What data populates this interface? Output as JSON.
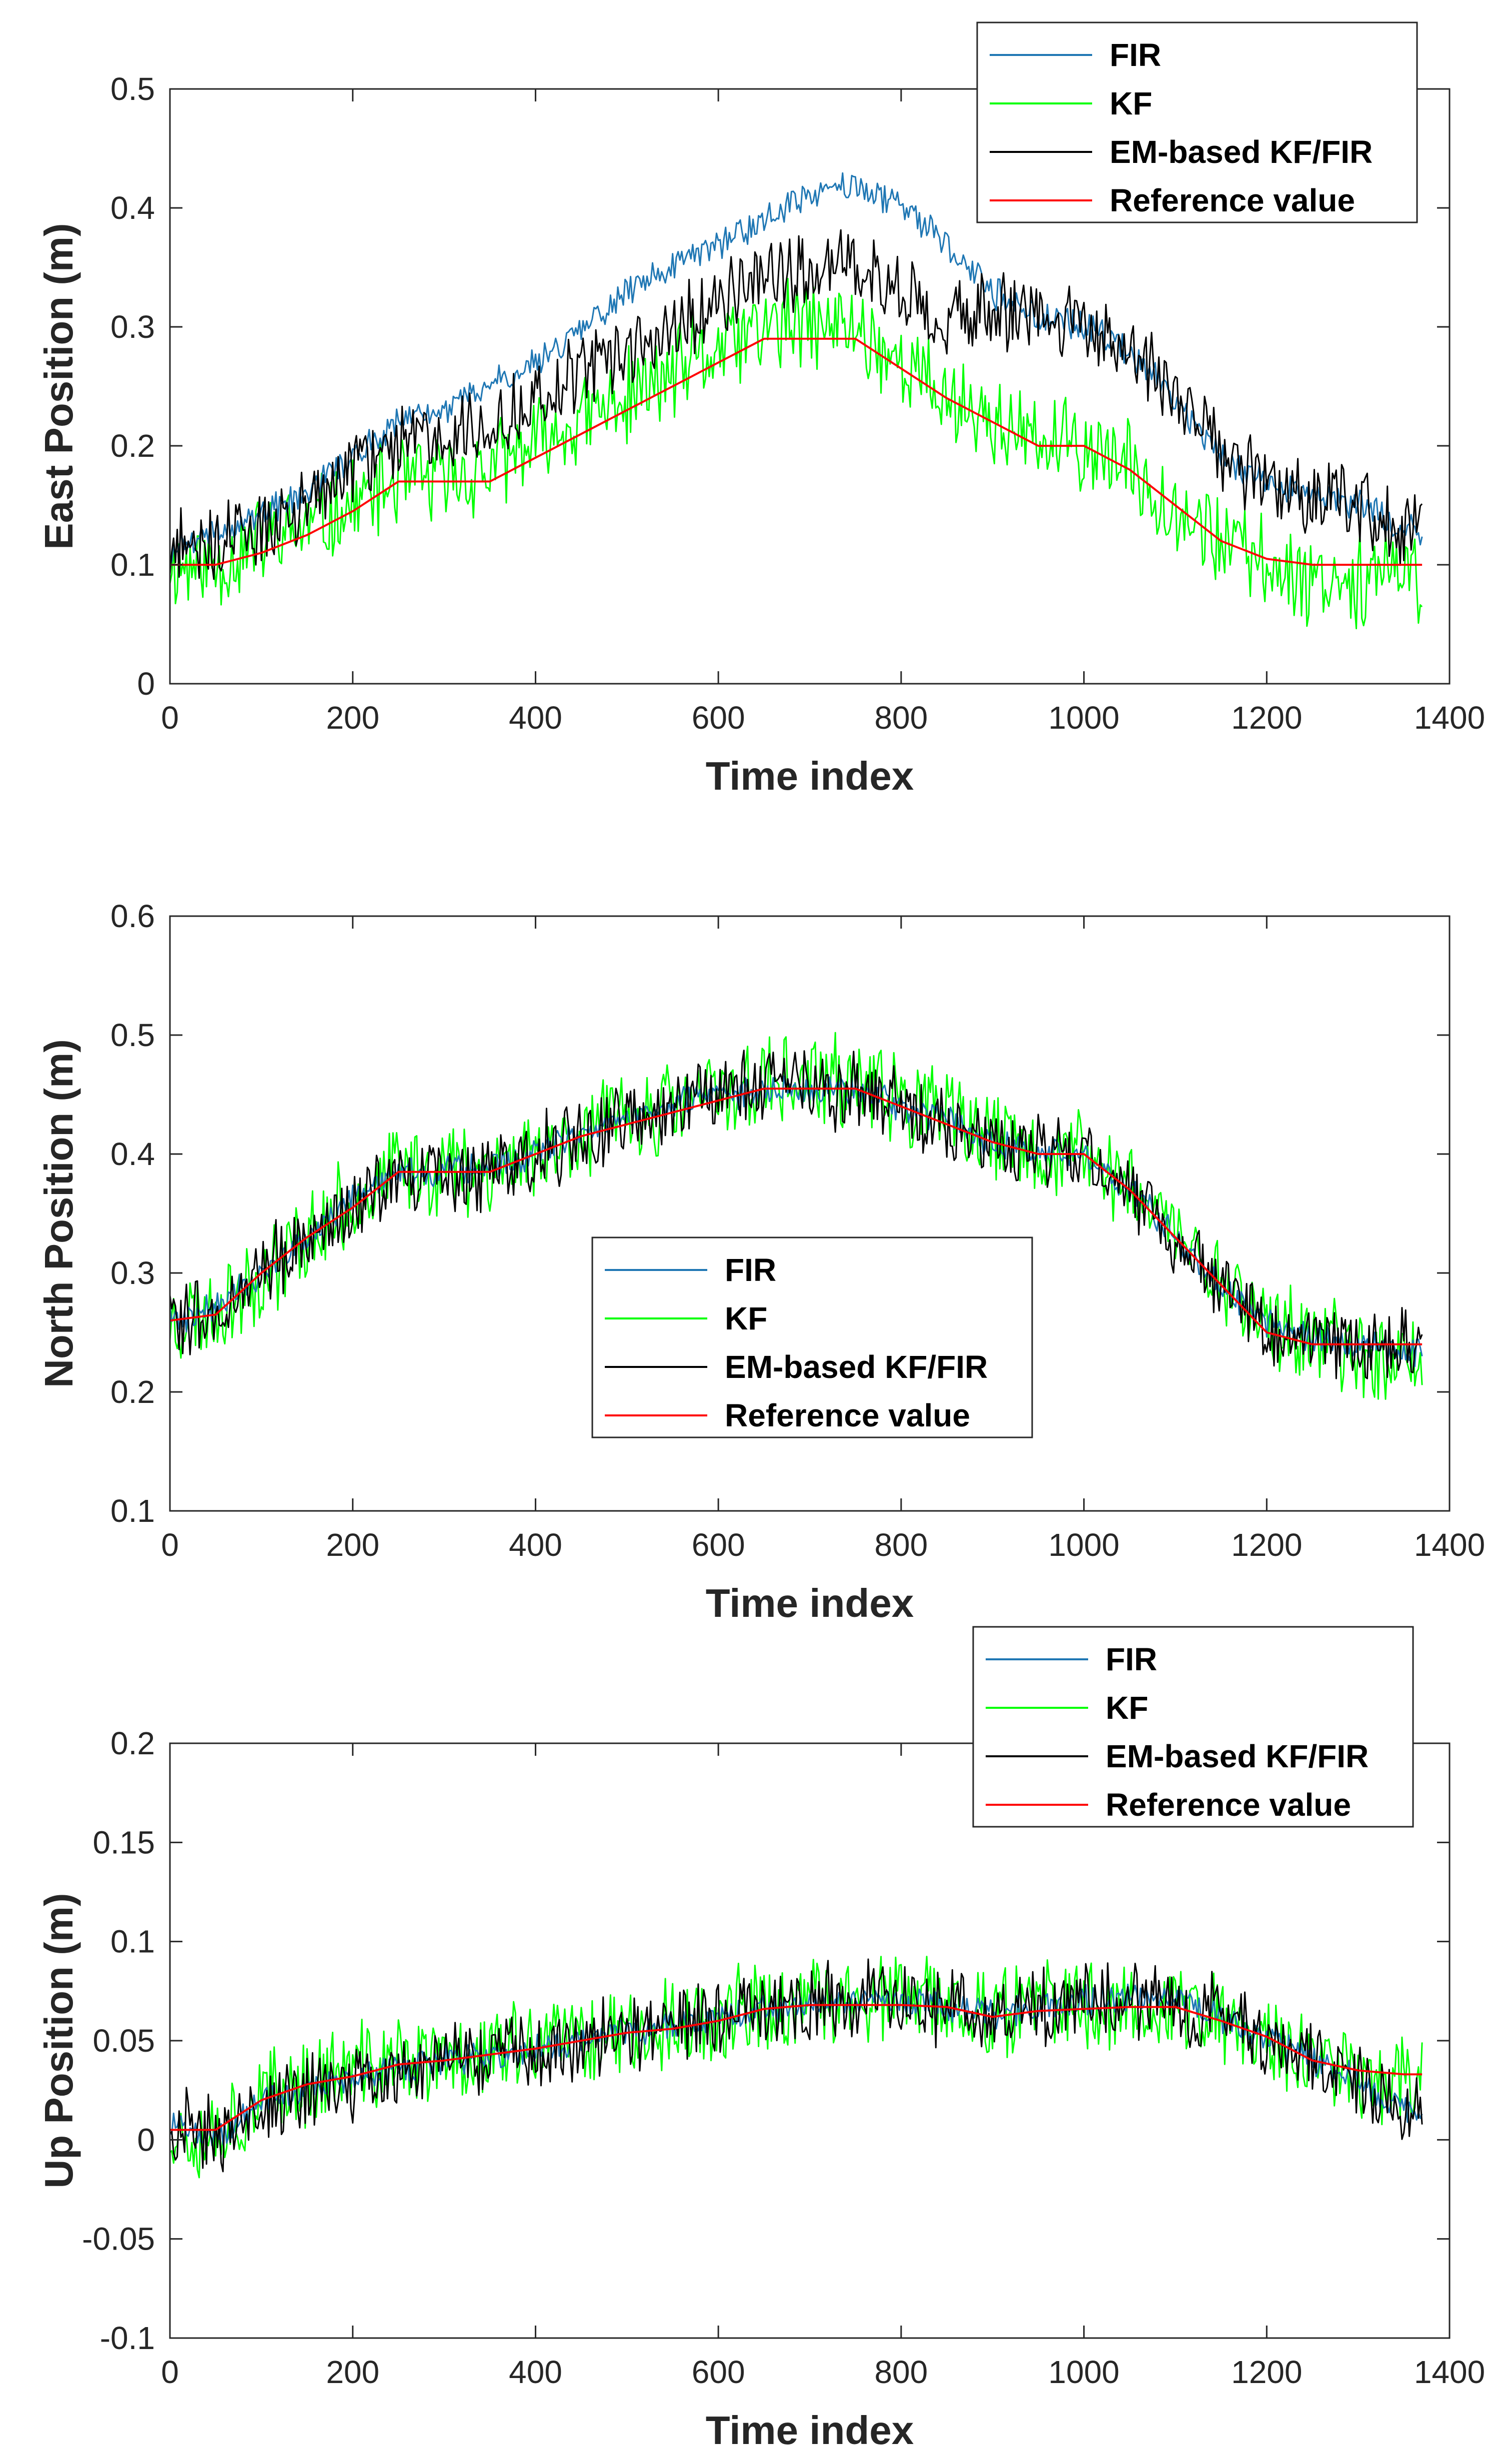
{
  "colors": {
    "FIR": "#1f77b4",
    "KF": "#00ff00",
    "EM-based KF/FIR": "#000000",
    "Reference value": "#ff0000"
  },
  "chart_data": [
    {
      "type": "line",
      "xlabel": "Time index",
      "ylabel": "East Position (m)",
      "xlim": [
        0,
        1400
      ],
      "ylim": [
        0,
        0.5
      ],
      "xticks": [
        0,
        200,
        400,
        600,
        800,
        1000,
        1200,
        1400
      ],
      "yticks": [
        0,
        0.1,
        0.2,
        0.3,
        0.4,
        0.5
      ],
      "xtick_labels": [
        "0",
        "200",
        "400",
        "600",
        "800",
        "1000",
        "1200",
        "1400"
      ],
      "ytick_labels": [
        "0",
        "0.1",
        "0.2",
        "0.3",
        "0.4",
        "0.5"
      ],
      "legend": "top-right",
      "legend_entries": [
        "FIR",
        "KF",
        "EM-based KF/FIR",
        "Reference value"
      ],
      "series": [
        {
          "name": "Reference value",
          "x": [
            0,
            50,
            100,
            150,
            200,
            250,
            300,
            350,
            400,
            450,
            500,
            550,
            600,
            650,
            700,
            750,
            800,
            850,
            900,
            950,
            1000,
            1050,
            1100,
            1150,
            1200,
            1250,
            1300,
            1350,
            1370
          ],
          "y": [
            0.1,
            0.1,
            0.11,
            0.125,
            0.145,
            0.17,
            0.17,
            0.17,
            0.19,
            0.21,
            0.23,
            0.25,
            0.27,
            0.29,
            0.29,
            0.29,
            0.265,
            0.24,
            0.22,
            0.2,
            0.2,
            0.18,
            0.15,
            0.12,
            0.105,
            0.1,
            0.1,
            0.1,
            0.1
          ]
        },
        {
          "name": "FIR",
          "x": [
            0,
            50,
            100,
            150,
            200,
            250,
            300,
            350,
            400,
            450,
            500,
            550,
            600,
            650,
            700,
            750,
            800,
            850,
            900,
            950,
            1000,
            1050,
            1100,
            1150,
            1200,
            1250,
            1300,
            1350,
            1370
          ],
          "y": [
            0.11,
            0.13,
            0.14,
            0.16,
            0.19,
            0.22,
            0.23,
            0.25,
            0.27,
            0.3,
            0.33,
            0.35,
            0.37,
            0.39,
            0.41,
            0.42,
            0.4,
            0.37,
            0.33,
            0.31,
            0.3,
            0.28,
            0.24,
            0.19,
            0.17,
            0.16,
            0.15,
            0.13,
            0.13
          ]
        },
        {
          "name": "KF",
          "x": [
            0,
            50,
            100,
            150,
            200,
            250,
            300,
            350,
            400,
            450,
            500,
            550,
            600,
            650,
            700,
            750,
            800,
            850,
            900,
            950,
            1000,
            1050,
            1100,
            1150,
            1200,
            1250,
            1300,
            1350,
            1370
          ],
          "y": [
            0.1,
            0.1,
            0.12,
            0.13,
            0.15,
            0.17,
            0.17,
            0.18,
            0.2,
            0.22,
            0.24,
            0.26,
            0.28,
            0.3,
            0.3,
            0.3,
            0.27,
            0.24,
            0.22,
            0.2,
            0.2,
            0.18,
            0.15,
            0.12,
            0.1,
            0.09,
            0.09,
            0.09,
            0.09
          ]
        },
        {
          "name": "EM-based KF/FIR",
          "x": [
            0,
            50,
            100,
            150,
            200,
            250,
            300,
            350,
            400,
            450,
            500,
            550,
            600,
            650,
            700,
            750,
            800,
            850,
            900,
            950,
            1000,
            1050,
            1100,
            1150,
            1200,
            1250,
            1300,
            1350,
            1370
          ],
          "y": [
            0.11,
            0.12,
            0.13,
            0.15,
            0.18,
            0.2,
            0.21,
            0.22,
            0.24,
            0.26,
            0.28,
            0.3,
            0.32,
            0.34,
            0.35,
            0.35,
            0.33,
            0.31,
            0.31,
            0.31,
            0.3,
            0.28,
            0.24,
            0.19,
            0.17,
            0.16,
            0.15,
            0.13,
            0.13
          ]
        }
      ]
    },
    {
      "type": "line",
      "xlabel": "Time index",
      "ylabel": "North Position (m)",
      "xlim": [
        0,
        1400
      ],
      "ylim": [
        0.1,
        0.6
      ],
      "xticks": [
        0,
        200,
        400,
        600,
        800,
        1000,
        1200,
        1400
      ],
      "yticks": [
        0.1,
        0.2,
        0.3,
        0.4,
        0.5,
        0.6
      ],
      "xtick_labels": [
        "0",
        "200",
        "400",
        "600",
        "800",
        "1000",
        "1200",
        "1400"
      ],
      "ytick_labels": [
        "0.1",
        "0.2",
        "0.3",
        "0.4",
        "0.5",
        "0.6"
      ],
      "legend": "center",
      "legend_entries": [
        "FIR",
        "KF",
        "EM-based KF/FIR",
        "Reference value"
      ],
      "series": [
        {
          "name": "Reference value",
          "x": [
            0,
            50,
            100,
            150,
            200,
            250,
            300,
            350,
            400,
            450,
            500,
            550,
            600,
            650,
            700,
            750,
            800,
            850,
            900,
            950,
            1000,
            1050,
            1100,
            1150,
            1200,
            1250,
            1300,
            1350,
            1370
          ],
          "y": [
            0.26,
            0.265,
            0.3,
            0.33,
            0.355,
            0.385,
            0.385,
            0.385,
            0.4,
            0.415,
            0.425,
            0.435,
            0.445,
            0.455,
            0.455,
            0.455,
            0.44,
            0.425,
            0.41,
            0.4,
            0.4,
            0.37,
            0.33,
            0.29,
            0.25,
            0.24,
            0.24,
            0.24,
            0.24
          ]
        },
        {
          "name": "FIR",
          "x": [
            0,
            50,
            100,
            150,
            200,
            250,
            300,
            350,
            400,
            450,
            500,
            550,
            600,
            650,
            700,
            750,
            800,
            850,
            900,
            950,
            1000,
            1050,
            1100,
            1150,
            1200,
            1250,
            1300,
            1350,
            1370
          ],
          "y": [
            0.26,
            0.27,
            0.3,
            0.33,
            0.36,
            0.385,
            0.385,
            0.39,
            0.4,
            0.415,
            0.43,
            0.44,
            0.45,
            0.455,
            0.455,
            0.455,
            0.44,
            0.43,
            0.41,
            0.4,
            0.4,
            0.37,
            0.33,
            0.29,
            0.26,
            0.245,
            0.24,
            0.235,
            0.235
          ]
        },
        {
          "name": "KF",
          "x": [
            0,
            50,
            100,
            150,
            200,
            250,
            300,
            350,
            400,
            450,
            500,
            550,
            600,
            650,
            700,
            750,
            800,
            850,
            900,
            950,
            1000,
            1050,
            1100,
            1150,
            1200,
            1250,
            1300,
            1350,
            1370
          ],
          "y": [
            0.26,
            0.27,
            0.3,
            0.33,
            0.36,
            0.385,
            0.39,
            0.39,
            0.4,
            0.42,
            0.43,
            0.44,
            0.45,
            0.46,
            0.46,
            0.46,
            0.445,
            0.43,
            0.41,
            0.4,
            0.4,
            0.375,
            0.335,
            0.295,
            0.26,
            0.24,
            0.235,
            0.23,
            0.23
          ]
        },
        {
          "name": "EM-based KF/FIR",
          "x": [
            0,
            50,
            100,
            150,
            200,
            250,
            300,
            350,
            400,
            450,
            500,
            550,
            600,
            650,
            700,
            750,
            800,
            850,
            900,
            950,
            1000,
            1050,
            1100,
            1150,
            1200,
            1250,
            1300,
            1350,
            1370
          ],
          "y": [
            0.26,
            0.265,
            0.3,
            0.33,
            0.355,
            0.385,
            0.385,
            0.385,
            0.4,
            0.415,
            0.425,
            0.44,
            0.45,
            0.455,
            0.455,
            0.455,
            0.44,
            0.425,
            0.41,
            0.4,
            0.4,
            0.37,
            0.33,
            0.29,
            0.255,
            0.245,
            0.24,
            0.235,
            0.235
          ]
        }
      ]
    },
    {
      "type": "line",
      "xlabel": "Time index",
      "ylabel": "Up Position (m)",
      "xlim": [
        0,
        1400
      ],
      "ylim": [
        -0.1,
        0.2
      ],
      "xticks": [
        0,
        200,
        400,
        600,
        800,
        1000,
        1200,
        1400
      ],
      "yticks": [
        -0.1,
        -0.05,
        0,
        0.05,
        0.1,
        0.15,
        0.2
      ],
      "xtick_labels": [
        "0",
        "200",
        "400",
        "600",
        "800",
        "1000",
        "1200",
        "1400"
      ],
      "ytick_labels": [
        "-0.1",
        "-0.05",
        "0",
        "0.05",
        "0.1",
        "0.15",
        "0.2"
      ],
      "legend": "top-right",
      "legend_entries": [
        "FIR",
        "KF",
        "EM-based KF/FIR",
        "Reference value"
      ],
      "series": [
        {
          "name": "Reference value",
          "x": [
            0,
            50,
            100,
            150,
            200,
            250,
            300,
            350,
            400,
            450,
            500,
            550,
            600,
            650,
            700,
            750,
            800,
            850,
            900,
            950,
            1000,
            1050,
            1100,
            1150,
            1200,
            1250,
            1300,
            1350,
            1370
          ],
          "y": [
            0.005,
            0.005,
            0.02,
            0.028,
            0.032,
            0.038,
            0.04,
            0.043,
            0.046,
            0.05,
            0.054,
            0.056,
            0.06,
            0.066,
            0.068,
            0.068,
            0.068,
            0.067,
            0.062,
            0.065,
            0.066,
            0.067,
            0.067,
            0.06,
            0.052,
            0.04,
            0.035,
            0.033,
            0.033
          ]
        },
        {
          "name": "FIR",
          "x": [
            0,
            50,
            100,
            150,
            200,
            250,
            300,
            350,
            400,
            450,
            500,
            550,
            600,
            650,
            700,
            750,
            800,
            850,
            900,
            950,
            1000,
            1050,
            1100,
            1150,
            1200,
            1250,
            1300,
            1350,
            1370
          ],
          "y": [
            0.01,
            0.0,
            0.02,
            0.025,
            0.03,
            0.035,
            0.04,
            0.042,
            0.045,
            0.05,
            0.055,
            0.058,
            0.062,
            0.066,
            0.068,
            0.07,
            0.07,
            0.068,
            0.064,
            0.066,
            0.07,
            0.072,
            0.07,
            0.062,
            0.052,
            0.04,
            0.03,
            0.015,
            0.015
          ]
        },
        {
          "name": "KF",
          "x": [
            0,
            50,
            100,
            150,
            200,
            250,
            300,
            350,
            400,
            450,
            500,
            550,
            600,
            650,
            700,
            750,
            800,
            850,
            900,
            950,
            1000,
            1050,
            1100,
            1150,
            1200,
            1250,
            1300,
            1350,
            1370
          ],
          "y": [
            0.005,
            0.005,
            0.02,
            0.03,
            0.035,
            0.04,
            0.04,
            0.045,
            0.048,
            0.052,
            0.055,
            0.058,
            0.062,
            0.066,
            0.068,
            0.07,
            0.07,
            0.068,
            0.065,
            0.066,
            0.068,
            0.068,
            0.066,
            0.06,
            0.05,
            0.04,
            0.035,
            0.03,
            0.03
          ]
        },
        {
          "name": "EM-based KF/FIR",
          "x": [
            0,
            50,
            100,
            150,
            200,
            250,
            300,
            350,
            400,
            450,
            500,
            550,
            600,
            650,
            700,
            750,
            800,
            850,
            900,
            950,
            1000,
            1050,
            1100,
            1150,
            1200,
            1250,
            1300,
            1350,
            1370
          ],
          "y": [
            0.01,
            0.0,
            0.02,
            0.025,
            0.03,
            0.035,
            0.04,
            0.042,
            0.045,
            0.05,
            0.055,
            0.058,
            0.062,
            0.066,
            0.068,
            0.07,
            0.07,
            0.068,
            0.064,
            0.066,
            0.07,
            0.072,
            0.07,
            0.062,
            0.052,
            0.04,
            0.03,
            0.015,
            0.015
          ]
        }
      ]
    }
  ]
}
